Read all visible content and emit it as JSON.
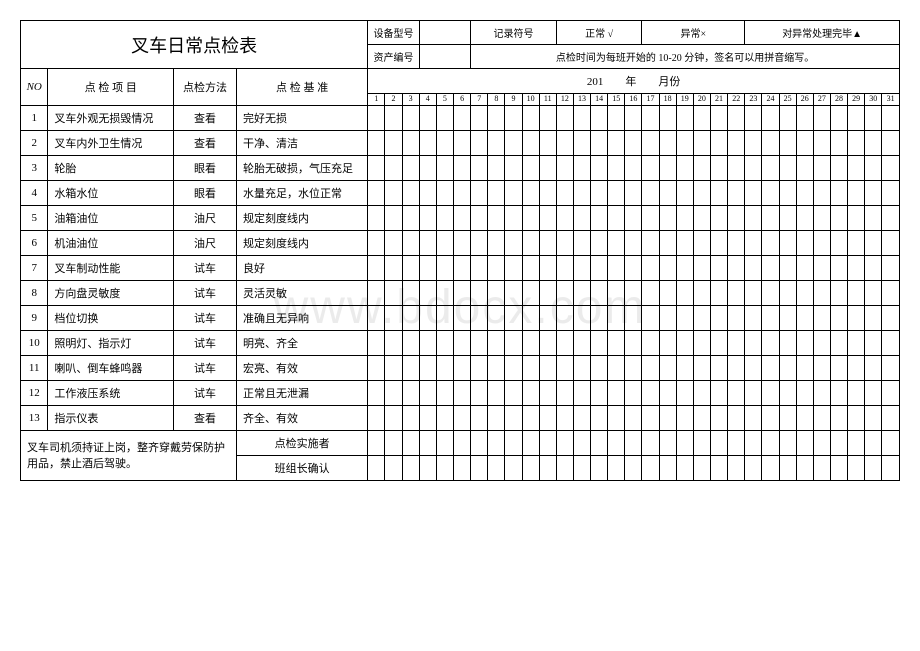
{
  "title": "叉车日常点检表",
  "header": {
    "equipModelLabel": "设备型号",
    "recordSymbolLabel": "记录符号",
    "normalLabel": "正常 √",
    "abnormalLabel": "异常×",
    "handledLabel": "对异常处理完毕▲",
    "assetNoLabel": "资产编号",
    "checkTimeNote": "点检时间为每班开始的 10-20 分钟，签名可以用拼音缩写。"
  },
  "columns": {
    "no": "NO",
    "item": "点 检 项 目",
    "method": "点检方法",
    "standard": "点 检 基 准",
    "yearMonth": "201　　年　　月份"
  },
  "days": [
    "1",
    "2",
    "3",
    "4",
    "5",
    "6",
    "7",
    "8",
    "9",
    "10",
    "11",
    "12",
    "13",
    "14",
    "15",
    "16",
    "17",
    "18",
    "19",
    "20",
    "21",
    "22",
    "23",
    "24",
    "25",
    "26",
    "27",
    "28",
    "29",
    "30",
    "31"
  ],
  "rows": [
    {
      "no": "1",
      "item": "叉车外观无损毁情况",
      "method": "查看",
      "standard": "完好无损"
    },
    {
      "no": "2",
      "item": "叉车内外卫生情况",
      "method": "查看",
      "standard": "干净、清洁"
    },
    {
      "no": "3",
      "item": "轮胎",
      "method": "眼看",
      "standard": "轮胎无破损，气压充足"
    },
    {
      "no": "4",
      "item": "水箱水位",
      "method": "眼看",
      "standard": "水量充足，水位正常"
    },
    {
      "no": "5",
      "item": "油箱油位",
      "method": "油尺",
      "standard": "规定刻度线内"
    },
    {
      "no": "6",
      "item": "机油油位",
      "method": "油尺",
      "standard": "规定刻度线内"
    },
    {
      "no": "7",
      "item": "叉车制动性能",
      "method": "试车",
      "standard": "良好"
    },
    {
      "no": "8",
      "item": "方向盘灵敏度",
      "method": "试车",
      "standard": "灵活灵敏"
    },
    {
      "no": "9",
      "item": "档位切换",
      "method": "试车",
      "standard": "准确且无异响"
    },
    {
      "no": "10",
      "item": "照明灯、指示灯",
      "method": "试车",
      "standard": "明亮、齐全"
    },
    {
      "no": "11",
      "item": "喇叭、倒车蜂鸣器",
      "method": "试车",
      "standard": "宏亮、有效"
    },
    {
      "no": "12",
      "item": "工作液压系统",
      "method": "试车",
      "standard": "正常且无泄漏"
    },
    {
      "no": "13",
      "item": "指示仪表",
      "method": "查看",
      "standard": "齐全、有效"
    }
  ],
  "footer": {
    "note": "叉车司机须持证上岗，整齐穿戴劳保防护用品，禁止酒后驾驶。",
    "implementer": "点检实施者",
    "teamLeader": "班组长确认"
  },
  "watermark": "www.bdocx.com"
}
